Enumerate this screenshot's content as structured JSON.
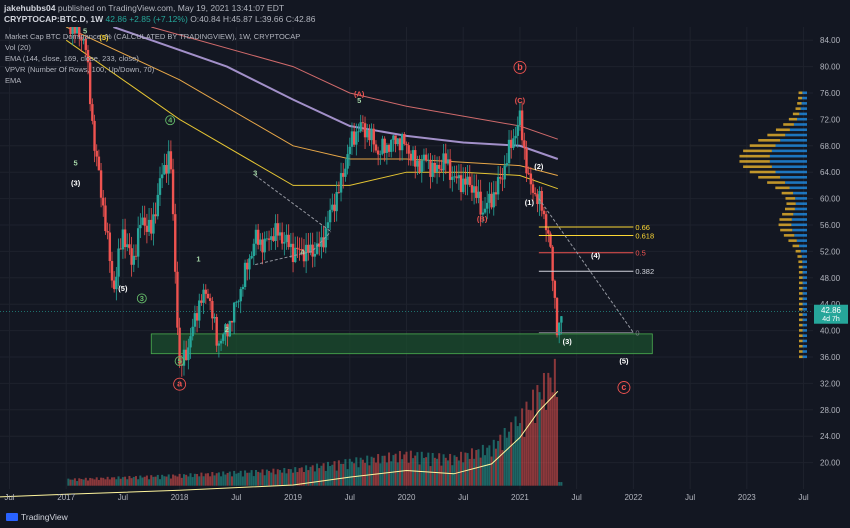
{
  "header": {
    "publisher": "jakehubbs04",
    "published_text": "published on TradingView.com, May 19, 2021 13:41:07 EDT",
    "symbol": "CRYPTOCAP:BTC.D, 1W",
    "ohlc": {
      "last": "42.86",
      "change": "+2.85 (+7.12%)",
      "open": "O:40.84",
      "high": "H:45.87",
      "low": "L:39.66",
      "close": "C:42.86"
    }
  },
  "legend": {
    "main": "Market Cap BTC Dominance, % (CALCULATED BY TRADINGVIEW), 1W, CRYPTOCAP",
    "vol": "Vol (20)",
    "ema": "EMA (144, close, 169, close, 233, close)",
    "vpvr": "VPVR (Number Of Rows, 100, Up/Down, 70)",
    "ema2": "EMA"
  },
  "footer": {
    "brand": "TradingView"
  },
  "colors": {
    "bg": "#131722",
    "up": "#26a69a",
    "down": "#ef5350",
    "ema144": "#fdd835",
    "ema169": "#ffb74d",
    "ema233": "#b39ddb",
    "ema_outer": "#e57373",
    "box": "#1b4d2e",
    "vpvr_up": "#2196f3",
    "vpvr_down": "#fbc02d",
    "price_tag": "#26a69a"
  },
  "chart_data": {
    "type": "candlestick",
    "title": "Market Cap BTC Dominance, % (CALCULATED BY TRADINGVIEW), 1W, CRYPTOCAP",
    "ylim": [
      16,
      86
    ],
    "y_ticks": [
      84,
      80,
      76,
      72,
      68,
      64,
      60,
      56,
      52,
      48,
      44,
      40,
      36,
      32,
      28,
      24,
      20
    ],
    "x_range": [
      "2016-06",
      "2023-08"
    ],
    "x_ticks": [
      {
        "label": "Jul",
        "date": "2016-07"
      },
      {
        "label": "2017",
        "date": "2017-01"
      },
      {
        "label": "Jul",
        "date": "2017-07"
      },
      {
        "label": "2018",
        "date": "2018-01"
      },
      {
        "label": "Jul",
        "date": "2018-07"
      },
      {
        "label": "2019",
        "date": "2019-01"
      },
      {
        "label": "Jul",
        "date": "2019-07"
      },
      {
        "label": "2020",
        "date": "2020-01"
      },
      {
        "label": "Jul",
        "date": "2020-07"
      },
      {
        "label": "2021",
        "date": "2021-01"
      },
      {
        "label": "Jul",
        "date": "2021-07"
      },
      {
        "label": "2022",
        "date": "2022-01"
      },
      {
        "label": "Jul",
        "date": "2022-07"
      },
      {
        "label": "2023",
        "date": "2023-01"
      },
      {
        "label": "Jul",
        "date": "2023-07"
      }
    ],
    "price_path": [
      [
        "2017-01",
        87
      ],
      [
        "2017-03",
        84
      ],
      [
        "2017-04",
        68
      ],
      [
        "2017-05",
        58
      ],
      [
        "2017-06",
        46
      ],
      [
        "2017-07",
        55
      ],
      [
        "2017-08",
        50
      ],
      [
        "2017-09",
        57
      ],
      [
        "2017-10",
        55
      ],
      [
        "2017-11",
        63
      ],
      [
        "2017-12",
        67
      ],
      [
        "2018-01",
        34
      ],
      [
        "2018-02",
        38
      ],
      [
        "2018-03",
        44
      ],
      [
        "2018-04",
        46
      ],
      [
        "2018-05",
        38
      ],
      [
        "2018-06",
        40
      ],
      [
        "2018-07",
        44
      ],
      [
        "2018-09",
        54
      ],
      [
        "2018-10",
        53
      ],
      [
        "2018-11",
        55
      ],
      [
        "2018-12",
        54
      ],
      [
        "2019-01",
        52
      ],
      [
        "2019-03",
        52
      ],
      [
        "2019-04",
        53
      ],
      [
        "2019-05",
        58
      ],
      [
        "2019-06",
        62
      ],
      [
        "2019-07",
        68
      ],
      [
        "2019-08",
        71
      ],
      [
        "2019-09",
        70
      ],
      [
        "2019-10",
        67
      ],
      [
        "2019-11",
        68
      ],
      [
        "2019-12",
        69
      ],
      [
        "2020-01",
        68
      ],
      [
        "2020-02",
        65
      ],
      [
        "2020-03",
        66
      ],
      [
        "2020-04",
        64
      ],
      [
        "2020-05",
        66
      ],
      [
        "2020-06",
        63
      ],
      [
        "2020-08",
        62
      ],
      [
        "2020-09",
        58
      ],
      [
        "2020-10",
        60
      ],
      [
        "2020-11",
        63
      ],
      [
        "2020-12",
        68
      ],
      [
        "2021-01",
        72
      ],
      [
        "2021-02",
        62
      ],
      [
        "2021-03",
        60
      ],
      [
        "2021-04",
        55
      ],
      [
        "2021-05",
        39.7
      ],
      [
        "2021-05-19",
        42.86
      ]
    ],
    "volume_path": [
      [
        "2016-06",
        17
      ],
      [
        "2017-01",
        17.4
      ],
      [
        "2018-01",
        18
      ],
      [
        "2019-01",
        18.8
      ],
      [
        "2019-07",
        20
      ],
      [
        "2020-01",
        21
      ],
      [
        "2020-06",
        20.5
      ],
      [
        "2020-10",
        22
      ],
      [
        "2021-01",
        26
      ],
      [
        "2021-03",
        30
      ],
      [
        "2021-05",
        33
      ]
    ],
    "emas": [
      {
        "name": "EMA 144",
        "points": [
          [
            "2017-01",
            84
          ],
          [
            "2018-01",
            72
          ],
          [
            "2019-01",
            62
          ],
          [
            "2019-07",
            62
          ],
          [
            "2020-01",
            64
          ],
          [
            "2020-07",
            64
          ],
          [
            "2021-01",
            63.5
          ],
          [
            "2021-05",
            61.5
          ]
        ]
      },
      {
        "name": "EMA 169",
        "points": [
          [
            "2017-01",
            86
          ],
          [
            "2018-01",
            78
          ],
          [
            "2019-01",
            68
          ],
          [
            "2019-07",
            66
          ],
          [
            "2020-01",
            66
          ],
          [
            "2020-07",
            65.5
          ],
          [
            "2021-01",
            65
          ],
          [
            "2021-05",
            63.5
          ]
        ]
      },
      {
        "name": "EMA 233",
        "points": [
          [
            "2017-06",
            86
          ],
          [
            "2018-06",
            80
          ],
          [
            "2019-01",
            75
          ],
          [
            "2019-07",
            71
          ],
          [
            "2020-01",
            69.5
          ],
          [
            "2020-07",
            68.5
          ],
          [
            "2021-01",
            68
          ],
          [
            "2021-05",
            66
          ]
        ]
      },
      {
        "name": "EMA",
        "points": [
          [
            "2017-10",
            86
          ],
          [
            "2019-01",
            80
          ],
          [
            "2019-07",
            76
          ],
          [
            "2020-01",
            74
          ],
          [
            "2021-01",
            71
          ],
          [
            "2021-05",
            69
          ]
        ]
      }
    ],
    "support_box": {
      "x_from": "2017-10",
      "x_to": "2022-03",
      "y_from": 36.5,
      "y_to": 39.5
    },
    "fib_levels": [
      {
        "label": "0.66",
        "y": 55.7,
        "x_from": "2021-03",
        "x_to": "2022-01"
      },
      {
        "label": "0.618",
        "y": 54.4,
        "x_from": "2021-03",
        "x_to": "2022-01"
      },
      {
        "label": "0.5",
        "y": 51.8,
        "x_from": "2021-03",
        "x_to": "2022-01"
      },
      {
        "label": "0.382",
        "y": 49.0,
        "x_from": "2021-03",
        "x_to": "2022-01"
      },
      {
        "label": "0",
        "y": 39.7,
        "x_from": "2021-03",
        "x_to": "2022-01"
      }
    ],
    "wave_labels": [
      {
        "text": "5",
        "x": "2017-03",
        "y": 85,
        "style": "plain"
      },
      {
        "text": "(5)",
        "x": "2017-05",
        "y": 84,
        "style": "plain"
      },
      {
        "text": "5",
        "x": "2017-02",
        "y": 65,
        "style": "plain"
      },
      {
        "text": "(3)",
        "x": "2017-02",
        "y": 62,
        "style": "paren"
      },
      {
        "text": "4",
        "x": "2017-12",
        "y": 71.5,
        "style": "circle"
      },
      {
        "text": "(5)",
        "x": "2017-07",
        "y": 46,
        "style": "paren"
      },
      {
        "text": "3",
        "x": "2017-09",
        "y": 44.5,
        "style": "circle"
      },
      {
        "text": "1",
        "x": "2018-03",
        "y": 50.5,
        "style": "plain"
      },
      {
        "text": "2",
        "x": "2018-06",
        "y": 39.8,
        "style": "plain"
      },
      {
        "text": "5",
        "x": "2018-01",
        "y": 35,
        "style": "circle"
      },
      {
        "text": "a",
        "x": "2018-01",
        "y": 31.5,
        "style": "circle-red"
      },
      {
        "text": "3",
        "x": "2018-09",
        "y": 63.5,
        "style": "plain"
      },
      {
        "text": "4",
        "x": "2019-02",
        "y": 51.5,
        "style": "plain"
      },
      {
        "text": "5",
        "x": "2019-08",
        "y": 74.5,
        "style": "plain"
      },
      {
        "text": "(A)",
        "x": "2019-08",
        "y": 75.5,
        "style": "red"
      },
      {
        "text": "(B)",
        "x": "2020-09",
        "y": 56.5,
        "style": "red"
      },
      {
        "text": "(C)",
        "x": "2021-01",
        "y": 74.5,
        "style": "red"
      },
      {
        "text": "b",
        "x": "2021-01",
        "y": 79.5,
        "style": "circle-red"
      },
      {
        "text": "(1)",
        "x": "2021-02",
        "y": 59,
        "style": "paren"
      },
      {
        "text": "(2)",
        "x": "2021-03",
        "y": 64.5,
        "style": "paren"
      },
      {
        "text": "(4)",
        "x": "2021-09",
        "y": 51,
        "style": "paren"
      },
      {
        "text": "(3)",
        "x": "2021-06",
        "y": 38,
        "style": "paren"
      },
      {
        "text": "(5)",
        "x": "2021-12",
        "y": 35,
        "style": "paren"
      },
      {
        "text": "c",
        "x": "2021-12",
        "y": 31,
        "style": "circle-red"
      }
    ],
    "current_price": {
      "value": "42.86",
      "countdown": "4d 7h"
    }
  }
}
